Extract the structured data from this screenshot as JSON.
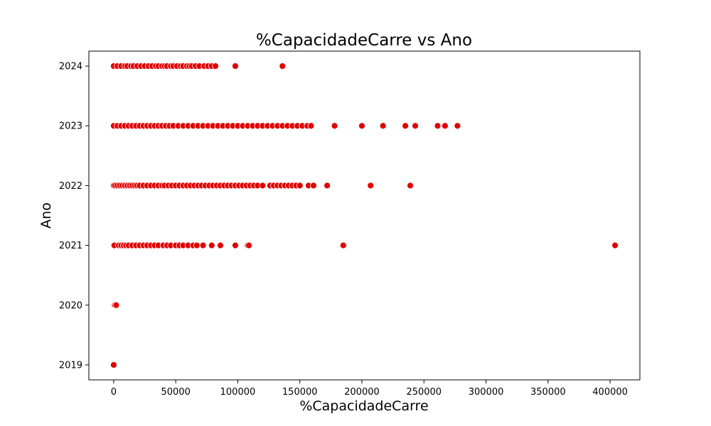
{
  "chart_data": {
    "type": "scatter",
    "title": "%CapacidadeCarre vs Ano",
    "xlabel": "%CapacidadeCarre",
    "ylabel": "Ano",
    "xlim": [
      -20000,
      424000
    ],
    "ylim": [
      2018.75,
      2024.25
    ],
    "x_ticks": [
      0,
      50000,
      100000,
      150000,
      200000,
      250000,
      300000,
      350000,
      400000
    ],
    "x_tick_labels": [
      "0",
      "50000",
      "100000",
      "150000",
      "200000",
      "250000",
      "300000",
      "350000",
      "400000"
    ],
    "y_ticks": [
      2019,
      2020,
      2021,
      2022,
      2023,
      2024
    ],
    "y_tick_labels": [
      "2019",
      "2020",
      "2021",
      "2022",
      "2023",
      "2024"
    ],
    "grid": false,
    "marker_color": "#e00000",
    "series": [
      {
        "points": [
          [
            0,
            2019
          ],
          [
            0,
            2020
          ],
          [
            500,
            2020
          ],
          [
            1000,
            2020
          ],
          [
            2000,
            2020
          ],
          [
            0,
            2021
          ],
          [
            500,
            2021
          ],
          [
            4000,
            2021
          ],
          [
            6000,
            2021
          ],
          [
            8000,
            2021
          ],
          [
            10000,
            2021
          ],
          [
            12000,
            2021
          ],
          [
            15000,
            2021
          ],
          [
            18000,
            2021
          ],
          [
            21000,
            2021
          ],
          [
            24000,
            2021
          ],
          [
            27000,
            2021
          ],
          [
            30000,
            2021
          ],
          [
            33000,
            2021
          ],
          [
            36000,
            2021
          ],
          [
            40000,
            2021
          ],
          [
            43000,
            2021
          ],
          [
            46000,
            2021
          ],
          [
            50000,
            2021
          ],
          [
            53000,
            2021
          ],
          [
            56000,
            2021
          ],
          [
            60000,
            2021
          ],
          [
            64000,
            2021
          ],
          [
            67000,
            2021
          ],
          [
            72000,
            2021
          ],
          [
            79000,
            2021
          ],
          [
            86000,
            2021
          ],
          [
            98000,
            2021
          ],
          [
            108000,
            2021
          ],
          [
            109000,
            2021
          ],
          [
            185000,
            2021
          ],
          [
            404000,
            2021
          ],
          [
            0,
            2022
          ],
          [
            1000,
            2022
          ],
          [
            3000,
            2022
          ],
          [
            5000,
            2022
          ],
          [
            7000,
            2022
          ],
          [
            9000,
            2022
          ],
          [
            11000,
            2022
          ],
          [
            13000,
            2022
          ],
          [
            15000,
            2022
          ],
          [
            17000,
            2022
          ],
          [
            19000,
            2022
          ],
          [
            21000,
            2022
          ],
          [
            24000,
            2022
          ],
          [
            27000,
            2022
          ],
          [
            30000,
            2022
          ],
          [
            33000,
            2022
          ],
          [
            36000,
            2022
          ],
          [
            39000,
            2022
          ],
          [
            41000,
            2022
          ],
          [
            44000,
            2022
          ],
          [
            47000,
            2022
          ],
          [
            50000,
            2022
          ],
          [
            53000,
            2022
          ],
          [
            56000,
            2022
          ],
          [
            59000,
            2022
          ],
          [
            62000,
            2022
          ],
          [
            65000,
            2022
          ],
          [
            68000,
            2022
          ],
          [
            71000,
            2022
          ],
          [
            74000,
            2022
          ],
          [
            77000,
            2022
          ],
          [
            80000,
            2022
          ],
          [
            83000,
            2022
          ],
          [
            86000,
            2022
          ],
          [
            89000,
            2022
          ],
          [
            92000,
            2022
          ],
          [
            95000,
            2022
          ],
          [
            98000,
            2022
          ],
          [
            101000,
            2022
          ],
          [
            104000,
            2022
          ],
          [
            107000,
            2022
          ],
          [
            110000,
            2022
          ],
          [
            113000,
            2022
          ],
          [
            116000,
            2022
          ],
          [
            120000,
            2022
          ],
          [
            126000,
            2022
          ],
          [
            129000,
            2022
          ],
          [
            132000,
            2022
          ],
          [
            135000,
            2022
          ],
          [
            138000,
            2022
          ],
          [
            141000,
            2022
          ],
          [
            144000,
            2022
          ],
          [
            147000,
            2022
          ],
          [
            150000,
            2022
          ],
          [
            157000,
            2022
          ],
          [
            161000,
            2022
          ],
          [
            172000,
            2022
          ],
          [
            207000,
            2022
          ],
          [
            239000,
            2022
          ],
          [
            0,
            2023
          ],
          [
            3000,
            2023
          ],
          [
            6000,
            2023
          ],
          [
            9000,
            2023
          ],
          [
            12000,
            2023
          ],
          [
            15000,
            2023
          ],
          [
            18000,
            2023
          ],
          [
            21000,
            2023
          ],
          [
            24000,
            2023
          ],
          [
            27000,
            2023
          ],
          [
            30000,
            2023
          ],
          [
            33000,
            2023
          ],
          [
            36000,
            2023
          ],
          [
            39000,
            2023
          ],
          [
            42000,
            2023
          ],
          [
            45000,
            2023
          ],
          [
            48000,
            2023
          ],
          [
            52000,
            2023
          ],
          [
            56000,
            2023
          ],
          [
            60000,
            2023
          ],
          [
            64000,
            2023
          ],
          [
            68000,
            2023
          ],
          [
            72000,
            2023
          ],
          [
            76000,
            2023
          ],
          [
            80000,
            2023
          ],
          [
            84000,
            2023
          ],
          [
            88000,
            2023
          ],
          [
            92000,
            2023
          ],
          [
            96000,
            2023
          ],
          [
            100000,
            2023
          ],
          [
            104000,
            2023
          ],
          [
            108000,
            2023
          ],
          [
            112000,
            2023
          ],
          [
            116000,
            2023
          ],
          [
            120000,
            2023
          ],
          [
            124000,
            2023
          ],
          [
            128000,
            2023
          ],
          [
            132000,
            2023
          ],
          [
            136000,
            2023
          ],
          [
            140000,
            2023
          ],
          [
            144000,
            2023
          ],
          [
            148000,
            2023
          ],
          [
            152000,
            2023
          ],
          [
            156000,
            2023
          ],
          [
            159000,
            2023
          ],
          [
            178000,
            2023
          ],
          [
            200000,
            2023
          ],
          [
            217000,
            2023
          ],
          [
            235000,
            2023
          ],
          [
            243000,
            2023
          ],
          [
            261000,
            2023
          ],
          [
            267000,
            2023
          ],
          [
            277000,
            2023
          ],
          [
            0,
            2024
          ],
          [
            3000,
            2024
          ],
          [
            6000,
            2024
          ],
          [
            9000,
            2024
          ],
          [
            11000,
            2024
          ],
          [
            14000,
            2024
          ],
          [
            16000,
            2024
          ],
          [
            19000,
            2024
          ],
          [
            22000,
            2024
          ],
          [
            25000,
            2024
          ],
          [
            28000,
            2024
          ],
          [
            31000,
            2024
          ],
          [
            34000,
            2024
          ],
          [
            36000,
            2024
          ],
          [
            39000,
            2024
          ],
          [
            41000,
            2024
          ],
          [
            43000,
            2024
          ],
          [
            46000,
            2024
          ],
          [
            48000,
            2024
          ],
          [
            51000,
            2024
          ],
          [
            54000,
            2024
          ],
          [
            56000,
            2024
          ],
          [
            59000,
            2024
          ],
          [
            61000,
            2024
          ],
          [
            63000,
            2024
          ],
          [
            66000,
            2024
          ],
          [
            69000,
            2024
          ],
          [
            73000,
            2024
          ],
          [
            76000,
            2024
          ],
          [
            79000,
            2024
          ],
          [
            82000,
            2024
          ],
          [
            98000,
            2024
          ],
          [
            136000,
            2024
          ]
        ]
      }
    ]
  }
}
